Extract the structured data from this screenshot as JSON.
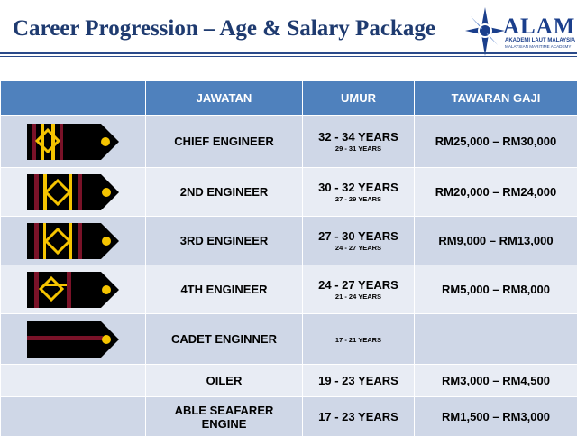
{
  "header": {
    "title": "Career Progression – Age & Salary Package"
  },
  "logo": {
    "brand": "ALAM",
    "line1": "AKADEMI LAUT MALAYSIA",
    "line2": "MALAYSIAN MARITIME ACADEMY"
  },
  "table": {
    "headers": [
      "",
      "JAWATAN",
      "UMUR",
      "TAWARAN GAJI"
    ],
    "rows": [
      {
        "rank": "CHIEF ENGINEER",
        "age": "32 - 34 YEARS",
        "age_sub": "29 - 31 YEARS",
        "salary": "RM25,000 – RM30,000",
        "epaulette": "chief-engineer-epaulette-icon"
      },
      {
        "rank": "2ND ENGINEER",
        "age": "30 - 32 YEARS",
        "age_sub": "27 - 29 YEARS",
        "salary": "RM20,000 – RM24,000",
        "epaulette": "2nd-engineer-epaulette-icon"
      },
      {
        "rank": "3RD ENGINEER",
        "age": "27 - 30 YEARS",
        "age_sub": "24 - 27 YEARS",
        "salary": "RM9,000 – RM13,000",
        "epaulette": "3rd-engineer-epaulette-icon"
      },
      {
        "rank": "4TH ENGINEER",
        "age": "24 - 27 YEARS",
        "age_sub": "21 - 24 YEARS",
        "salary": "RM5,000 – RM8,000",
        "epaulette": "4th-engineer-epaulette-icon"
      },
      {
        "rank": "CADET ENGINNER",
        "age": "",
        "age_sub": "17 - 21 YEARS",
        "salary": "",
        "epaulette": "cadet-engineer-epaulette-icon"
      },
      {
        "rank": "OILER",
        "age": "19 - 23 YEARS",
        "age_sub": "",
        "salary": "RM3,000 – RM4,500",
        "epaulette": ""
      },
      {
        "rank": "ABLE SEAFARER ENGINE",
        "age": "17 - 23 YEARS",
        "age_sub": "",
        "salary": "RM1,500 – RM3,000",
        "epaulette": ""
      }
    ]
  },
  "colors": {
    "header_bg": "#4f81bd",
    "row_dark": "#cfd7e7",
    "row_light": "#e8ecf4",
    "title": "#1f3b70",
    "stripe": "#7a1228",
    "gold": "#f5c400"
  }
}
